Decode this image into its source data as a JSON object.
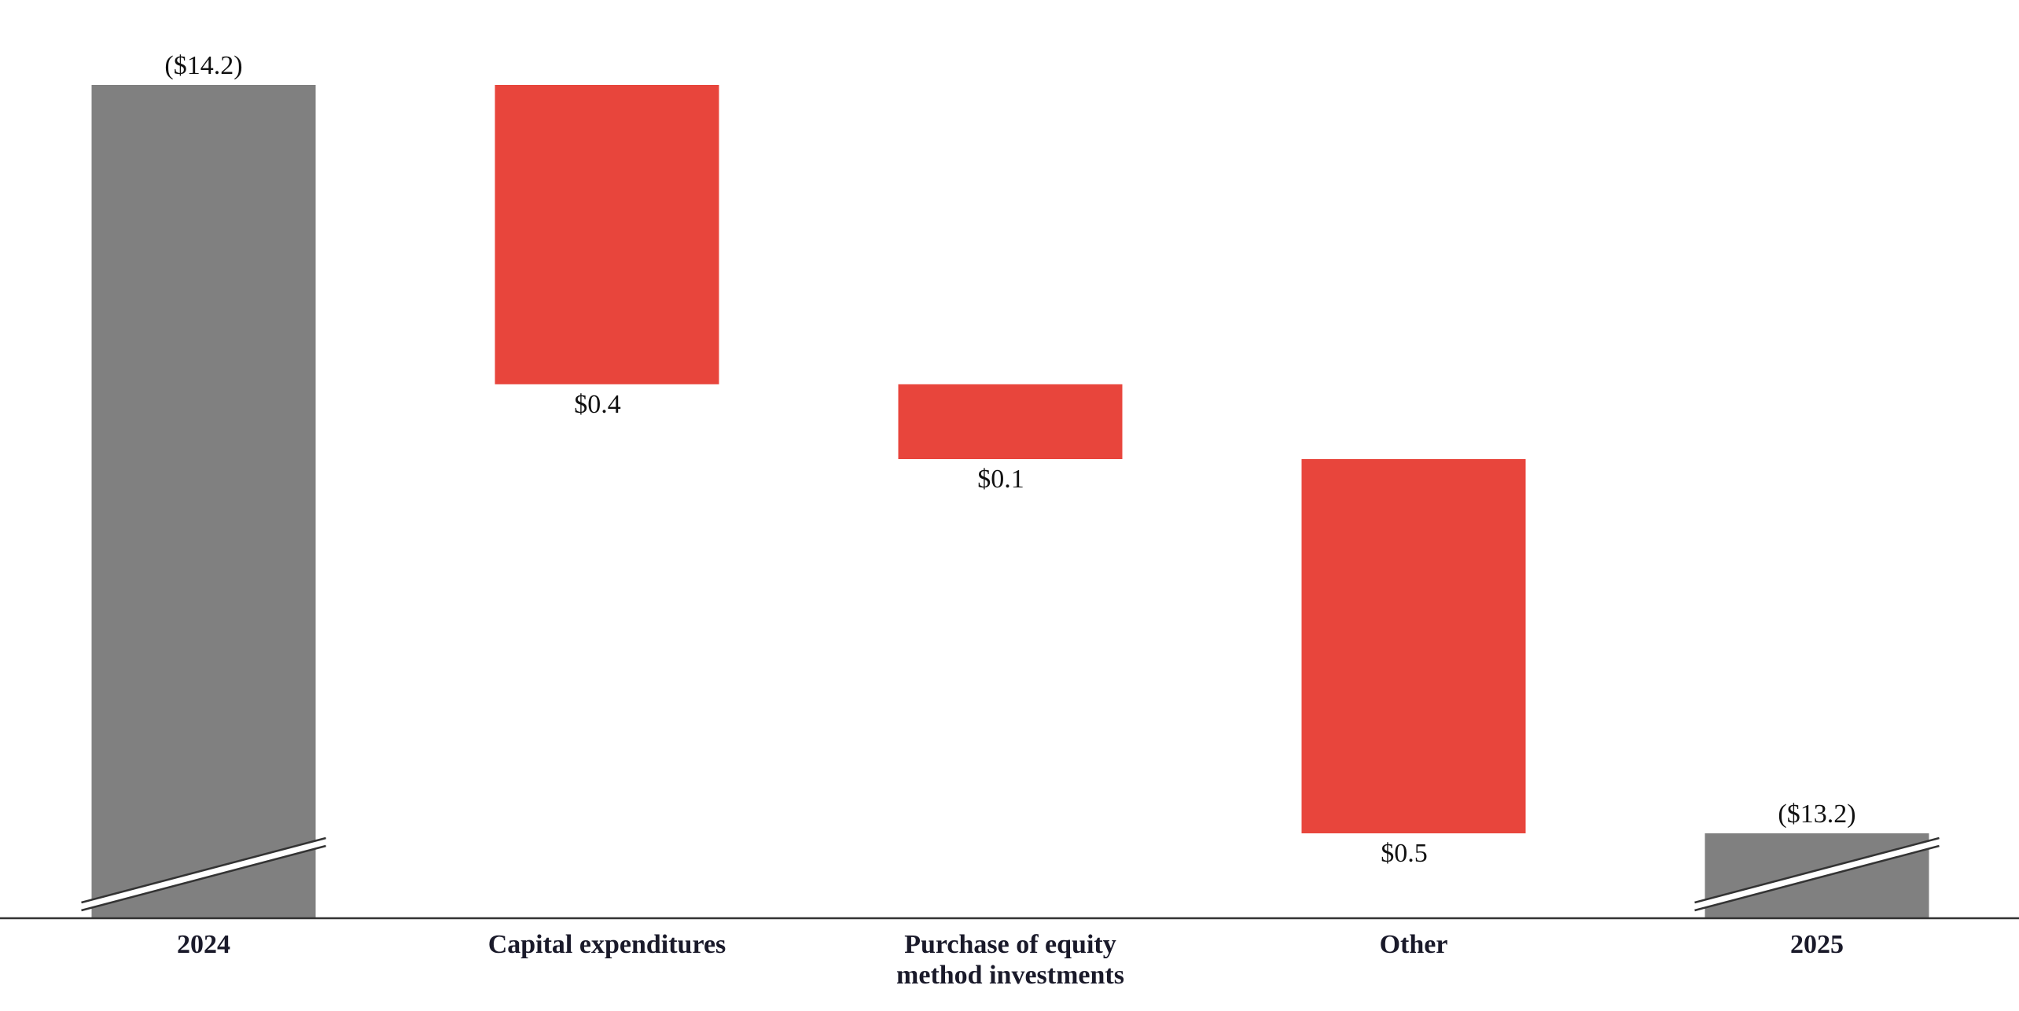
{
  "chart_data": {
    "type": "waterfall",
    "categories": [
      "2024",
      "Capital expenditures",
      "Purchase of equity\nmethod investments",
      "Other",
      "2025"
    ],
    "values": [
      -14.2,
      0.4,
      0.1,
      0.5,
      -13.2
    ],
    "value_labels": [
      "($14.2)",
      "$0.4",
      "$0.1",
      "$0.5",
      "($13.2)"
    ],
    "total_color": "#808080",
    "change_color": "#e8453c",
    "axis_break": true
  }
}
